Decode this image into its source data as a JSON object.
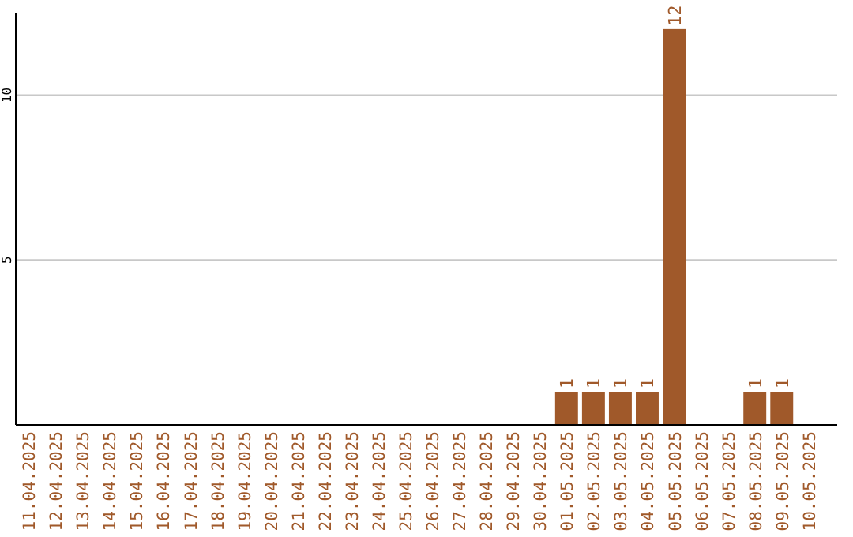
{
  "chart_data": {
    "type": "bar",
    "categories": [
      "11.04.2025",
      "12.04.2025",
      "13.04.2025",
      "14.04.2025",
      "15.04.2025",
      "16.04.2025",
      "17.04.2025",
      "18.04.2025",
      "19.04.2025",
      "20.04.2025",
      "21.04.2025",
      "22.04.2025",
      "23.04.2025",
      "24.04.2025",
      "25.04.2025",
      "26.04.2025",
      "27.04.2025",
      "28.04.2025",
      "29.04.2025",
      "30.04.2025",
      "01.05.2025",
      "02.05.2025",
      "03.05.2025",
      "04.05.2025",
      "05.05.2025",
      "06.05.2025",
      "07.05.2025",
      "08.05.2025",
      "09.05.2025",
      "10.05.2025"
    ],
    "values": [
      0,
      0,
      0,
      0,
      0,
      0,
      0,
      0,
      0,
      0,
      0,
      0,
      0,
      0,
      0,
      0,
      0,
      0,
      0,
      0,
      1,
      1,
      1,
      1,
      12,
      0,
      0,
      1,
      1,
      0
    ],
    "value_labels": [
      null,
      null,
      null,
      null,
      null,
      null,
      null,
      null,
      null,
      null,
      null,
      null,
      null,
      null,
      null,
      null,
      null,
      null,
      null,
      null,
      "1",
      "1",
      "1",
      "1",
      "12",
      null,
      null,
      "1",
      "1",
      null
    ],
    "color": "#a0592a",
    "ylim": [
      0,
      12.5
    ],
    "yticks": [
      5,
      10
    ],
    "grid": "y"
  }
}
